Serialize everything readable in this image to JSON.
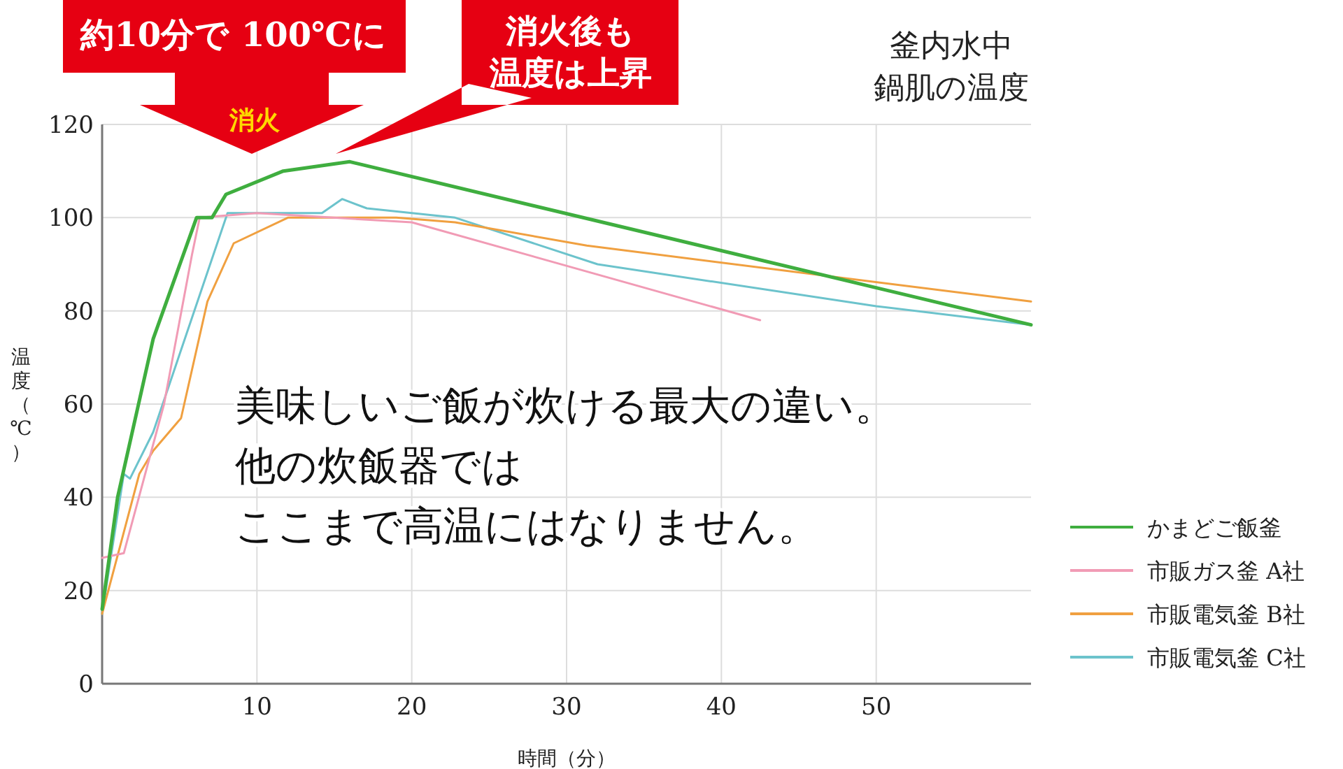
{
  "chart_data": {
    "type": "line",
    "title": "釜内水中鍋肌の温度",
    "xlabel": "時間（分）",
    "ylabel": "温度（℃）",
    "xlim": [
      0,
      60
    ],
    "ylim": [
      0,
      120
    ],
    "xticks": [
      10,
      20,
      30,
      40,
      50
    ],
    "yticks": [
      0,
      20,
      40,
      60,
      80,
      100,
      120
    ],
    "grid": true,
    "legend": "right",
    "line_style": "solid",
    "annotations": [
      "約10分で 100℃に",
      "消火後も",
      "温度は上昇",
      "消火",
      "美味しいご飯が炊ける最大の違い。",
      "他の炊飯器では",
      "ここまで高温にはなりません。"
    ],
    "series": [
      {
        "name": "かまどご飯釜",
        "color": "#3fae3f",
        "x": [
          0,
          1,
          3.3,
          6.1,
          7.1,
          8,
          11.7,
          16,
          60
        ],
        "values": [
          16,
          40,
          74,
          100,
          100,
          105,
          110,
          112,
          77
        ]
      },
      {
        "name": "市販ガス釜 A社",
        "color": "#f19bb5",
        "x": [
          0,
          1.4,
          4,
          5.8,
          6.3,
          10,
          20,
          42.5
        ],
        "values": [
          27,
          28,
          60,
          92,
          100,
          101,
          99,
          78
        ]
      },
      {
        "name": "市販電気釜 B社",
        "color": "#f0a040",
        "x": [
          0,
          2.4,
          3.3,
          5.1,
          6.8,
          8.5,
          12,
          19,
          22.8,
          31.3,
          60
        ],
        "values": [
          15,
          45,
          50,
          57,
          82,
          94.5,
          100,
          100,
          99,
          94,
          82
        ]
      },
      {
        "name": "市販電気釜 C社",
        "color": "#6cc3cc",
        "x": [
          0,
          1.4,
          1.8,
          3.3,
          8.1,
          14.2,
          15.5,
          17.1,
          22.8,
          32,
          50,
          60
        ],
        "values": [
          15,
          45,
          44,
          54,
          101,
          101,
          104,
          102,
          100,
          90,
          81,
          77
        ]
      }
    ]
  }
}
